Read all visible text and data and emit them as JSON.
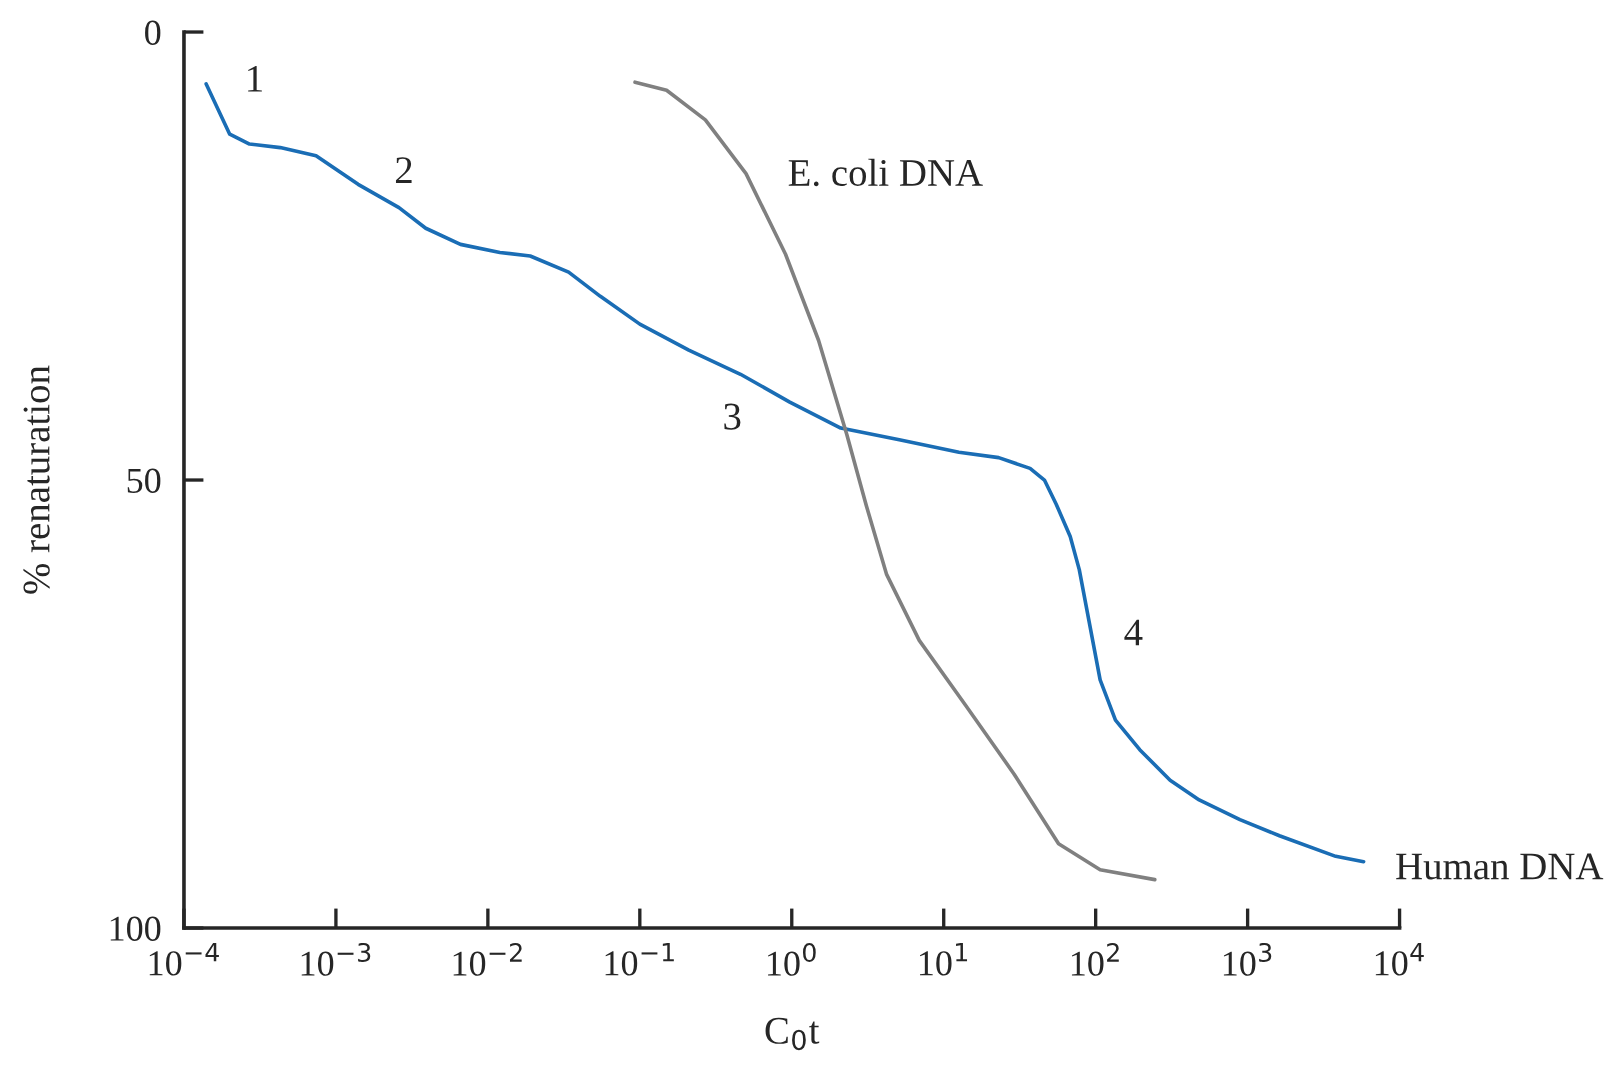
{
  "chart_data": {
    "type": "line",
    "xlabel": "C$_{0}$t",
    "ylabel": "% renaturation",
    "log": "x",
    "xlim": [
      0.0001,
      10000
    ],
    "ylim": [
      100,
      0
    ],
    "xticks": [
      {
        "value": 0.0001,
        "label": "10$^{−4}$"
      },
      {
        "value": 0.001,
        "label": "10$^{−3}$"
      },
      {
        "value": 0.01,
        "label": "10$^{−2}$"
      },
      {
        "value": 0.1,
        "label": "10$^{−1}$"
      },
      {
        "value": 1,
        "label": "10$^{0}$"
      },
      {
        "value": 10,
        "label": "10$^{1}$"
      },
      {
        "value": 100,
        "label": "10$^{2}$"
      },
      {
        "value": 1000,
        "label": "10$^{3}$"
      },
      {
        "value": 10000,
        "label": "10$^{4}$"
      }
    ],
    "yticks": [
      0,
      50,
      100
    ],
    "grid": false,
    "legend": false,
    "marker": "none",
    "line_style": "solid",
    "series": [
      {
        "color": "#1a6db5",
        "x": [
          0.00014,
          0.0002,
          0.00027,
          0.00043,
          0.00074,
          0.0014,
          0.0026,
          0.0039,
          0.0066,
          0.012,
          0.019,
          0.034,
          0.055,
          0.1,
          0.21,
          0.46,
          0.97,
          2.1,
          5.1,
          12.6,
          23,
          37,
          46,
          55,
          68,
          78,
          91,
          107,
          135,
          195,
          309,
          480,
          890,
          1620,
          3800,
          5800
        ],
        "values": [
          5.8,
          11.4,
          12.5,
          12.9,
          13.8,
          17,
          19.6,
          21.9,
          23.7,
          24.6,
          25,
          26.8,
          29.5,
          32.6,
          35.5,
          38.2,
          41.3,
          44.2,
          45.5,
          46.9,
          47.5,
          48.7,
          50,
          52.7,
          56.3,
          60,
          66,
          72.3,
          76.8,
          80.1,
          83.5,
          85.7,
          87.9,
          89.7,
          92,
          92.6
        ]
      },
      {
        "color": "#808080",
        "x": [
          0.093,
          0.15,
          0.27,
          0.5,
          0.91,
          1.5,
          2.3,
          3.1,
          4.2,
          6.9,
          14,
          29,
          57,
          107,
          245
        ],
        "values": [
          5.6,
          6.5,
          9.8,
          15.8,
          24.8,
          34.4,
          44.9,
          52.9,
          60.5,
          67.9,
          75.2,
          82.8,
          90.6,
          93.5,
          94.6
        ]
      }
    ],
    "annotations": [
      "1",
      "2",
      "3",
      "4",
      "E. coli DNA",
      "Human DNA"
    ]
  }
}
